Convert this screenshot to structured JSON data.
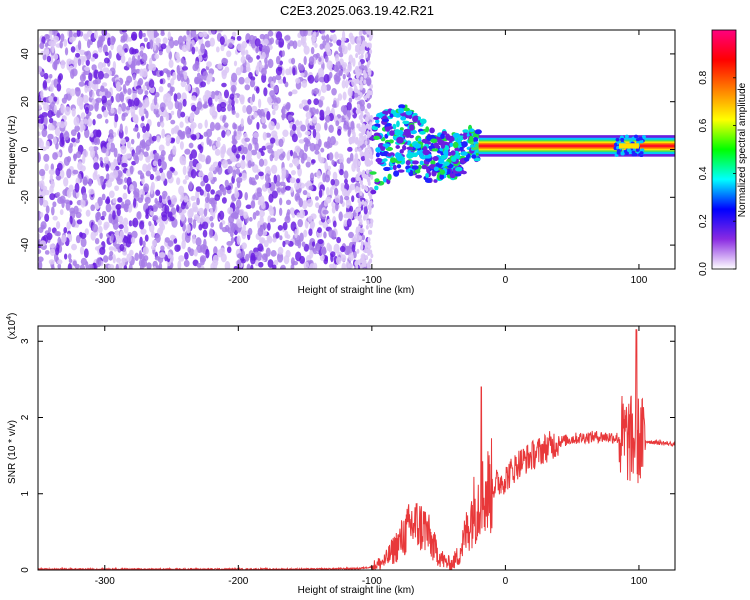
{
  "title": "C2E3.2025.063.19.42.R21",
  "colors": {
    "trace": "#e8383a",
    "scatter_light": "#dcc8f6",
    "scatter_mid": "#a77ce8",
    "scatter_dark": "#6a1ee0",
    "axis": "#000000"
  },
  "chart_data": [
    {
      "type": "heatmap",
      "xlabel": "Height of straight line (km)",
      "ylabel": "Frequency (Hz)",
      "xlim": [
        -350,
        127
      ],
      "ylim": [
        -50,
        50
      ],
      "xticks": [
        -300,
        -200,
        -100,
        0,
        100
      ],
      "yticks": [
        -40,
        -20,
        0,
        20,
        40
      ],
      "noise_region_x": [
        -350,
        -100
      ],
      "signal_band_hz": 1.5,
      "grid": false,
      "colorbar": {
        "label": "Normalized spectral amplitude",
        "range": [
          0,
          1
        ],
        "ticks": [
          0.0,
          0.2,
          0.4,
          0.6,
          0.8
        ],
        "placement": "right",
        "colormap": [
          "#ffffff",
          "#8a2be2",
          "#0000ff",
          "#00ffff",
          "#00ff00",
          "#ffff00",
          "#ff8000",
          "#ff0000",
          "#ff007f"
        ]
      }
    },
    {
      "type": "line",
      "xlabel": "Height of straight line (km)",
      "ylabel": "SNR (10 * v/v)",
      "y_multiplier": "(x10",
      "y_multiplier_exp": "4",
      "y_multiplier_close": ")",
      "xlim": [
        -350,
        127
      ],
      "ylim": [
        0,
        3.2
      ],
      "xticks": [
        -300,
        -200,
        -100,
        0,
        100
      ],
      "yticks": [
        0,
        1,
        2,
        3
      ],
      "grid": false,
      "series": [
        {
          "x": [
            -350,
            -150,
            -110,
            -100,
            -90,
            -80,
            -70,
            -60,
            -55,
            -50,
            -45,
            -40,
            -35,
            -30,
            -25,
            -20,
            -15,
            -10,
            0,
            10,
            20,
            30,
            40,
            50,
            60,
            70,
            80,
            90,
            95,
            100,
            105,
            110,
            120,
            127
          ],
          "values": [
            0.01,
            0.01,
            0.02,
            0.04,
            0.12,
            0.35,
            0.6,
            0.55,
            0.35,
            0.2,
            0.1,
            0.08,
            0.2,
            0.45,
            0.75,
            0.9,
            1.0,
            1.1,
            1.2,
            1.4,
            1.5,
            1.6,
            1.68,
            1.72,
            1.74,
            1.75,
            1.74,
            1.72,
            1.7,
            1.7,
            1.69,
            1.68,
            1.66,
            1.65
          ]
        }
      ]
    }
  ]
}
